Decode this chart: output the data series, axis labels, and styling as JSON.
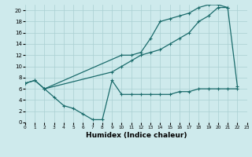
{
  "xlabel": "Humidex (Indice chaleur)",
  "bg_color": "#ceeaec",
  "grid_color": "#aacfd2",
  "line_color": "#1a6b6b",
  "xlim": [
    0,
    23
  ],
  "ylim": [
    0,
    21
  ],
  "xticks": [
    0,
    1,
    2,
    3,
    4,
    5,
    6,
    7,
    8,
    9,
    10,
    11,
    12,
    13,
    14,
    15,
    16,
    17,
    18,
    19,
    20,
    21,
    22,
    23
  ],
  "yticks": [
    0,
    2,
    4,
    6,
    8,
    10,
    12,
    14,
    16,
    18,
    20
  ],
  "line1_x": [
    0,
    1,
    2,
    10,
    11,
    12,
    13,
    14,
    15,
    16,
    17,
    18,
    19,
    20,
    21
  ],
  "line1_y": [
    7,
    7.5,
    6,
    12,
    12,
    12.5,
    15,
    18,
    18.5,
    19,
    19.5,
    20.5,
    21,
    21,
    20.5
  ],
  "line2_x": [
    0,
    1,
    2,
    9,
    10,
    11,
    12,
    13,
    14,
    15,
    16,
    17,
    18,
    19,
    20,
    21,
    22
  ],
  "line2_y": [
    7,
    7.5,
    6,
    9,
    10,
    11,
    12,
    12.5,
    13,
    14,
    15,
    16,
    18,
    19,
    20.5,
    20.5,
    6.5
  ],
  "line3_x": [
    2,
    3,
    4,
    5,
    6,
    7,
    8,
    9,
    10,
    11,
    12,
    13,
    14,
    15,
    16,
    17,
    18,
    19,
    20,
    21,
    22
  ],
  "line3_y": [
    6,
    4.5,
    3,
    2.5,
    1.5,
    0.5,
    0.5,
    7.5,
    5,
    5,
    5,
    5,
    5,
    5,
    5.5,
    5.5,
    6,
    6,
    6,
    6,
    6
  ]
}
